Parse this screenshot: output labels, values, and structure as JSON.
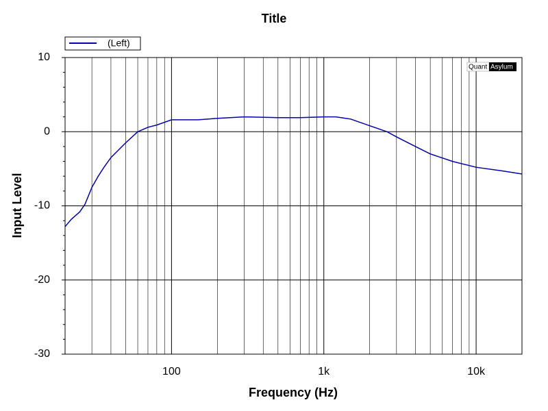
{
  "chart_data": {
    "type": "line",
    "title": "Title",
    "xlabel": "Frequency (Hz)",
    "ylabel": "Input Level",
    "xscale": "log",
    "grid": true,
    "xlim": [
      20,
      20000
    ],
    "ylim": [
      -30,
      10
    ],
    "xticks": [
      {
        "value": 100,
        "label": "100"
      },
      {
        "value": 1000,
        "label": "1k"
      },
      {
        "value": 10000,
        "label": "10k"
      }
    ],
    "xminor": [
      20,
      30,
      40,
      50,
      60,
      70,
      80,
      90,
      200,
      300,
      400,
      500,
      600,
      700,
      800,
      900,
      2000,
      3000,
      4000,
      5000,
      6000,
      7000,
      8000,
      9000
    ],
    "yticks": [
      -30,
      -20,
      -10,
      0,
      10
    ],
    "yminor": [
      -28,
      -26,
      -24,
      -22,
      -18,
      -16,
      -14,
      -12,
      -8,
      -6,
      -4,
      -2,
      2,
      4,
      6,
      8
    ],
    "legend": "top-left",
    "brand": {
      "left": "Quant",
      "right": "Asylum"
    },
    "x": [
      20,
      22,
      25,
      27,
      30,
      33,
      36,
      40,
      50,
      60,
      70,
      80,
      100,
      150,
      200,
      300,
      500,
      700,
      1000,
      1200,
      1500,
      2000,
      2600,
      3000,
      4000,
      5000,
      7000,
      10000,
      15000,
      20000
    ],
    "series": [
      {
        "name": "(Left)",
        "color": "#0000a8",
        "values": [
          -12.8,
          -11.8,
          -10.8,
          -9.8,
          -7.5,
          -6,
          -4.8,
          -3.5,
          -1.5,
          0,
          0.6,
          0.9,
          1.6,
          1.6,
          1.8,
          2,
          1.9,
          1.9,
          2,
          2,
          1.7,
          0.8,
          0,
          -0.7,
          -2,
          -3,
          -4,
          -4.8,
          -5.3,
          -5.7
        ]
      }
    ]
  }
}
